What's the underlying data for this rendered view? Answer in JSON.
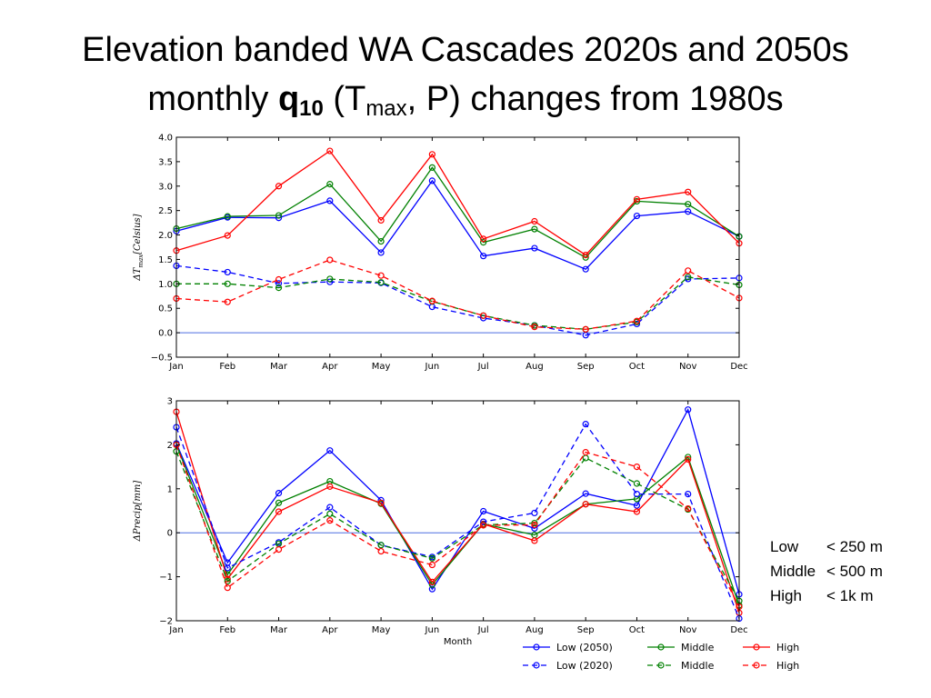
{
  "title": {
    "line1": "Elevation banded WA Cascades 2020s and 2050s",
    "line2_prefix": "monthly ",
    "line2_bold_q": "q",
    "line2_bold_sub": "10",
    "line2_paren_open": " (T",
    "line2_sub_max": "max",
    "line2_suffix": ", P) changes from 1980s"
  },
  "elevation_legend": [
    {
      "name": "Low",
      "value": "< 250 m"
    },
    {
      "name": "Middle",
      "value": "< 500 m"
    },
    {
      "name": "High",
      "value": "< 1k m"
    }
  ],
  "colors": {
    "low": "#0000ff",
    "middle": "#008000",
    "high": "#ff0000",
    "zero_line": "#4d6ee0"
  },
  "chart_data": [
    {
      "type": "line",
      "title": "",
      "xlabel": "",
      "ylabel": "ΔT_max[Celsius]",
      "ylabel_parts": {
        "delta": "ΔT",
        "sub": "max",
        "unit": "[Celsius]"
      },
      "categories": [
        "Jan",
        "Feb",
        "Mar",
        "Apr",
        "May",
        "Jun",
        "Jul",
        "Aug",
        "Sep",
        "Oct",
        "Nov",
        "Dec"
      ],
      "ylim": [
        -0.5,
        4.0
      ],
      "yticks": [
        "−0.5",
        "0.0",
        "0.5",
        "1.0",
        "1.5",
        "2.0",
        "2.5",
        "3.0",
        "3.5",
        "4.0"
      ],
      "ytick_values": [
        -0.5,
        0.0,
        0.5,
        1.0,
        1.5,
        2.0,
        2.5,
        3.0,
        3.5,
        4.0
      ],
      "reference_line": 0,
      "series": [
        {
          "name": "Low (2050)",
          "band": "low",
          "dash": false,
          "values": [
            2.08,
            2.36,
            2.35,
            2.7,
            1.64,
            3.11,
            1.57,
            1.73,
            1.3,
            2.39,
            2.48,
            1.97
          ]
        },
        {
          "name": "Middle",
          "band": "middle",
          "dash": false,
          "values": [
            2.13,
            2.38,
            2.4,
            3.04,
            1.87,
            3.38,
            1.85,
            2.12,
            1.54,
            2.69,
            2.63,
            1.97
          ]
        },
        {
          "name": "High",
          "band": "high",
          "dash": false,
          "values": [
            1.68,
            1.99,
            3.0,
            3.72,
            2.3,
            3.65,
            1.92,
            2.28,
            1.59,
            2.73,
            2.88,
            1.83
          ]
        },
        {
          "name": "Low (2020)",
          "band": "low",
          "dash": true,
          "values": [
            1.37,
            1.24,
            1.01,
            1.04,
            1.02,
            0.53,
            0.3,
            0.15,
            -0.05,
            0.18,
            1.1,
            1.12
          ]
        },
        {
          "name": "Middle",
          "band": "middle",
          "dash": true,
          "values": [
            1.0,
            1.0,
            0.92,
            1.1,
            1.03,
            0.64,
            0.35,
            0.15,
            0.07,
            0.22,
            1.14,
            0.98
          ]
        },
        {
          "name": "High",
          "band": "high",
          "dash": true,
          "values": [
            0.7,
            0.63,
            1.09,
            1.49,
            1.17,
            0.65,
            0.35,
            0.12,
            0.07,
            0.24,
            1.27,
            0.71
          ]
        }
      ]
    },
    {
      "type": "line",
      "title": "",
      "xlabel": "Month",
      "ylabel": "ΔPrecip[mm]",
      "ylabel_parts": {
        "delta": "ΔPrecip",
        "unit": "[mm]"
      },
      "categories": [
        "Jan",
        "Feb",
        "Mar",
        "Apr",
        "May",
        "Jun",
        "Jul",
        "Aug",
        "Sep",
        "Oct",
        "Nov",
        "Dec"
      ],
      "ylim": [
        -2,
        3
      ],
      "yticks": [
        "−2",
        "−1",
        "0",
        "1",
        "2",
        "3"
      ],
      "ytick_values": [
        -2,
        -1,
        0,
        1,
        2,
        3
      ],
      "reference_line": 0,
      "legend_position": "bottom",
      "series": [
        {
          "name": "Low (2050)",
          "band": "low",
          "dash": false,
          "values": [
            2.03,
            -0.68,
            0.9,
            1.87,
            0.74,
            -1.28,
            0.49,
            0.1,
            0.89,
            0.62,
            2.8,
            -1.4
          ]
        },
        {
          "name": "Middle",
          "band": "middle",
          "dash": false,
          "values": [
            2.0,
            -0.95,
            0.68,
            1.17,
            0.66,
            -1.18,
            0.2,
            -0.05,
            0.65,
            0.77,
            1.72,
            -1.65
          ]
        },
        {
          "name": "High",
          "band": "high",
          "dash": false,
          "values": [
            2.75,
            -1.05,
            0.48,
            1.05,
            0.68,
            -1.12,
            0.2,
            -0.18,
            0.65,
            0.48,
            1.67,
            -1.82
          ]
        },
        {
          "name": "Low (2020)",
          "band": "low",
          "dash": true,
          "values": [
            2.4,
            -0.8,
            -0.22,
            0.58,
            -0.28,
            -0.55,
            0.25,
            0.45,
            2.47,
            0.88,
            0.88,
            -1.95
          ]
        },
        {
          "name": "Middle",
          "band": "middle",
          "dash": true,
          "values": [
            1.85,
            -1.1,
            -0.25,
            0.43,
            -0.28,
            -0.58,
            0.18,
            0.22,
            1.7,
            1.12,
            0.53,
            -1.55
          ]
        },
        {
          "name": "High",
          "band": "high",
          "dash": true,
          "values": [
            2.0,
            -1.25,
            -0.38,
            0.28,
            -0.42,
            -0.73,
            0.17,
            0.18,
            1.83,
            1.5,
            0.55,
            -1.68
          ]
        }
      ]
    }
  ],
  "legend": {
    "columns": [
      [
        {
          "label": "Low (2050)",
          "band": "low",
          "dash": false
        },
        {
          "label": "Low (2020)",
          "band": "low",
          "dash": true
        }
      ],
      [
        {
          "label": "Middle",
          "band": "middle",
          "dash": false
        },
        {
          "label": "Middle",
          "band": "middle",
          "dash": true
        }
      ],
      [
        {
          "label": "High",
          "band": "high",
          "dash": false
        },
        {
          "label": "High",
          "band": "high",
          "dash": true
        }
      ]
    ]
  }
}
